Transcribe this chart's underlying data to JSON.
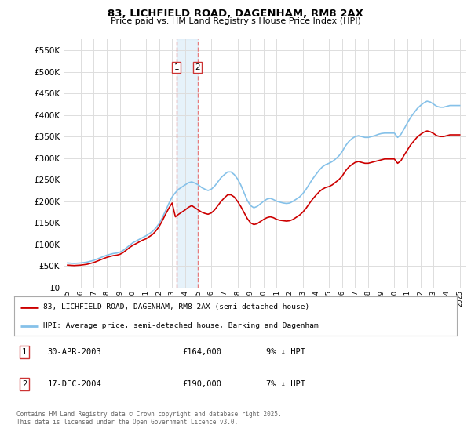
{
  "title": "83, LICHFIELD ROAD, DAGENHAM, RM8 2AX",
  "subtitle": "Price paid vs. HM Land Registry's House Price Index (HPI)",
  "ylabel_ticks": [
    0,
    50000,
    100000,
    150000,
    200000,
    250000,
    300000,
    350000,
    400000,
    450000,
    500000,
    550000
  ],
  "ylim": [
    0,
    575000
  ],
  "xlim_start": 1994.7,
  "xlim_end": 2025.5,
  "hpi_color": "#85C1E9",
  "price_color": "#CC0000",
  "vline_color": "#E87070",
  "span_color": "#D6EAF8",
  "background_color": "#ffffff",
  "grid_color": "#dddddd",
  "transactions": [
    {
      "label": "1",
      "date": "30-APR-2003",
      "price": "£164,000",
      "pct": "9% ↓ HPI",
      "year": 2003.33
    },
    {
      "label": "2",
      "date": "17-DEC-2004",
      "price": "£190,000",
      "pct": "7% ↓ HPI",
      "year": 2004.96
    }
  ],
  "legend_entries": [
    {
      "label": "83, LICHFIELD ROAD, DAGENHAM, RM8 2AX (semi-detached house)",
      "color": "#CC0000"
    },
    {
      "label": "HPI: Average price, semi-detached house, Barking and Dagenham",
      "color": "#85C1E9"
    }
  ],
  "footnote": "Contains HM Land Registry data © Crown copyright and database right 2025.\nThis data is licensed under the Open Government Licence v3.0.",
  "hpi_data": {
    "years": [
      1995.0,
      1995.25,
      1995.5,
      1995.75,
      1996.0,
      1996.25,
      1996.5,
      1996.75,
      1997.0,
      1997.25,
      1997.5,
      1997.75,
      1998.0,
      1998.25,
      1998.5,
      1998.75,
      1999.0,
      1999.25,
      1999.5,
      1999.75,
      2000.0,
      2000.25,
      2000.5,
      2000.75,
      2001.0,
      2001.25,
      2001.5,
      2001.75,
      2002.0,
      2002.25,
      2002.5,
      2002.75,
      2003.0,
      2003.25,
      2003.5,
      2003.75,
      2004.0,
      2004.25,
      2004.5,
      2004.75,
      2005.0,
      2005.25,
      2005.5,
      2005.75,
      2006.0,
      2006.25,
      2006.5,
      2006.75,
      2007.0,
      2007.25,
      2007.5,
      2007.75,
      2008.0,
      2008.25,
      2008.5,
      2008.75,
      2009.0,
      2009.25,
      2009.5,
      2009.75,
      2010.0,
      2010.25,
      2010.5,
      2010.75,
      2011.0,
      2011.25,
      2011.5,
      2011.75,
      2012.0,
      2012.25,
      2012.5,
      2012.75,
      2013.0,
      2013.25,
      2013.5,
      2013.75,
      2014.0,
      2014.25,
      2014.5,
      2014.75,
      2015.0,
      2015.25,
      2015.5,
      2015.75,
      2016.0,
      2016.25,
      2016.5,
      2016.75,
      2017.0,
      2017.25,
      2017.5,
      2017.75,
      2018.0,
      2018.25,
      2018.5,
      2018.75,
      2019.0,
      2019.25,
      2019.5,
      2019.75,
      2020.0,
      2020.25,
      2020.5,
      2020.75,
      2021.0,
      2021.25,
      2021.5,
      2021.75,
      2022.0,
      2022.25,
      2022.5,
      2022.75,
      2023.0,
      2023.25,
      2023.5,
      2023.75,
      2024.0,
      2024.25,
      2024.5,
      2024.75,
      2025.0
    ],
    "values": [
      57000,
      56500,
      56000,
      56500,
      57000,
      58000,
      59000,
      61000,
      63000,
      66000,
      69000,
      72000,
      75000,
      77000,
      79000,
      80000,
      82000,
      86000,
      92000,
      98000,
      104000,
      108000,
      112000,
      116000,
      120000,
      125000,
      130000,
      138000,
      148000,
      162000,
      178000,
      195000,
      210000,
      220000,
      228000,
      233000,
      238000,
      243000,
      245000,
      242000,
      238000,
      232000,
      228000,
      225000,
      228000,
      235000,
      245000,
      255000,
      262000,
      268000,
      268000,
      262000,
      252000,
      238000,
      220000,
      202000,
      190000,
      185000,
      188000,
      194000,
      200000,
      205000,
      207000,
      204000,
      200000,
      198000,
      196000,
      195000,
      196000,
      200000,
      205000,
      210000,
      218000,
      228000,
      240000,
      252000,
      262000,
      272000,
      280000,
      285000,
      288000,
      292000,
      298000,
      305000,
      315000,
      328000,
      338000,
      345000,
      350000,
      352000,
      350000,
      348000,
      348000,
      350000,
      352000,
      355000,
      357000,
      358000,
      358000,
      358000,
      358000,
      348000,
      355000,
      368000,
      382000,
      395000,
      405000,
      415000,
      422000,
      428000,
      432000,
      430000,
      425000,
      420000,
      418000,
      418000,
      420000,
      422000,
      422000,
      422000,
      422000
    ]
  },
  "price_data": {
    "years": [
      1995.0,
      1995.25,
      1995.5,
      1995.75,
      1996.0,
      1996.25,
      1996.5,
      1996.75,
      1997.0,
      1997.25,
      1997.5,
      1997.75,
      1998.0,
      1998.25,
      1998.5,
      1998.75,
      1999.0,
      1999.25,
      1999.5,
      1999.75,
      2000.0,
      2000.25,
      2000.5,
      2000.75,
      2001.0,
      2001.25,
      2001.5,
      2001.75,
      2002.0,
      2002.25,
      2002.5,
      2002.75,
      2003.0,
      2003.25,
      2003.5,
      2003.75,
      2004.0,
      2004.25,
      2004.5,
      2004.75,
      2005.0,
      2005.25,
      2005.5,
      2005.75,
      2006.0,
      2006.25,
      2006.5,
      2006.75,
      2007.0,
      2007.25,
      2007.5,
      2007.75,
      2008.0,
      2008.25,
      2008.5,
      2008.75,
      2009.0,
      2009.25,
      2009.5,
      2009.75,
      2010.0,
      2010.25,
      2010.5,
      2010.75,
      2011.0,
      2011.25,
      2011.5,
      2011.75,
      2012.0,
      2012.25,
      2012.5,
      2012.75,
      2013.0,
      2013.25,
      2013.5,
      2013.75,
      2014.0,
      2014.25,
      2014.5,
      2014.75,
      2015.0,
      2015.25,
      2015.5,
      2015.75,
      2016.0,
      2016.25,
      2016.5,
      2016.75,
      2017.0,
      2017.25,
      2017.5,
      2017.75,
      2018.0,
      2018.25,
      2018.5,
      2018.75,
      2019.0,
      2019.25,
      2019.5,
      2019.75,
      2020.0,
      2020.25,
      2020.5,
      2020.75,
      2021.0,
      2021.25,
      2021.5,
      2021.75,
      2022.0,
      2022.25,
      2022.5,
      2022.75,
      2023.0,
      2023.25,
      2023.5,
      2023.75,
      2024.0,
      2024.25,
      2024.5,
      2024.75,
      2025.0
    ],
    "values": [
      52000,
      51500,
      51000,
      51500,
      52000,
      53000,
      54000,
      56000,
      58000,
      61000,
      64000,
      67000,
      70000,
      72000,
      74000,
      75000,
      77000,
      81000,
      87000,
      93000,
      98000,
      102000,
      106000,
      110000,
      113000,
      118000,
      123000,
      131000,
      141000,
      155000,
      170000,
      184000,
      196000,
      164000,
      170000,
      175000,
      180000,
      186000,
      190000,
      185000,
      180000,
      175000,
      172000,
      170000,
      173000,
      180000,
      190000,
      200000,
      208000,
      215000,
      215000,
      210000,
      200000,
      188000,
      174000,
      160000,
      150000,
      146000,
      148000,
      153000,
      158000,
      162000,
      164000,
      162000,
      158000,
      156000,
      155000,
      154000,
      155000,
      158000,
      163000,
      168000,
      175000,
      184000,
      195000,
      205000,
      214000,
      222000,
      228000,
      232000,
      234000,
      238000,
      244000,
      250000,
      258000,
      270000,
      279000,
      285000,
      290000,
      292000,
      290000,
      288000,
      288000,
      290000,
      292000,
      294000,
      296000,
      298000,
      298000,
      298000,
      298000,
      288000,
      294000,
      307000,
      319000,
      331000,
      340000,
      349000,
      355000,
      360000,
      363000,
      361000,
      357000,
      352000,
      350000,
      350000,
      352000,
      354000,
      354000,
      354000,
      354000
    ]
  }
}
